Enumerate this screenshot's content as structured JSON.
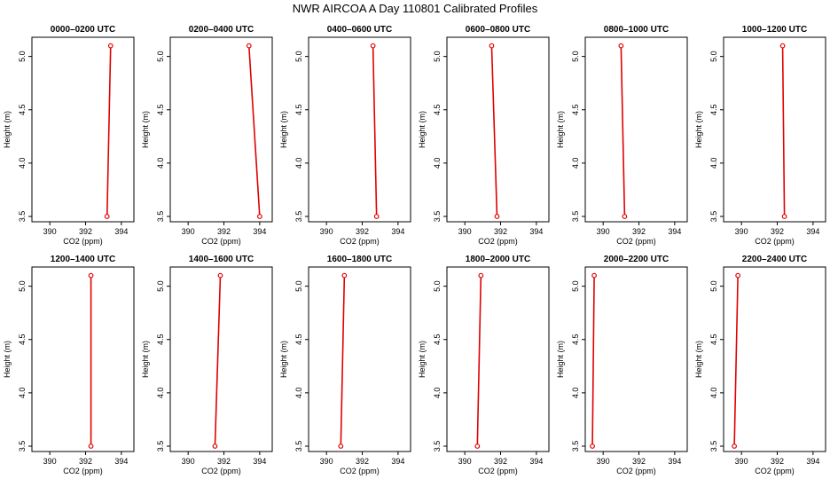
{
  "figure_title": "NWR AIRCOA A  Day 110801  Calibrated Profiles",
  "colors": {
    "profile": "#e00000",
    "frame": "#000000"
  },
  "chart_data": [
    {
      "type": "line",
      "title": "0000–0200 UTC",
      "xlabel": "CO2 (ppm)",
      "ylabel": "Height (m)",
      "xlim": [
        389,
        394.7
      ],
      "ylim": [
        3.45,
        5.18
      ],
      "xticks": [
        390,
        392,
        394
      ],
      "yticks": [
        3.5,
        4.0,
        4.5,
        5.0
      ],
      "series": [
        {
          "values": [
            {
              "x": 393.2,
              "y": 3.5
            },
            {
              "x": 393.4,
              "y": 5.1
            }
          ]
        }
      ]
    },
    {
      "type": "line",
      "title": "0200–0400 UTC",
      "xlabel": "CO2 (ppm)",
      "ylabel": "Height (m)",
      "xlim": [
        389,
        394.7
      ],
      "ylim": [
        3.45,
        5.18
      ],
      "xticks": [
        390,
        392,
        394
      ],
      "yticks": [
        3.5,
        4.0,
        4.5,
        5.0
      ],
      "series": [
        {
          "values": [
            {
              "x": 394.0,
              "y": 3.5
            },
            {
              "x": 393.4,
              "y": 5.1
            }
          ]
        }
      ]
    },
    {
      "type": "line",
      "title": "0400–0600 UTC",
      "xlabel": "CO2 (ppm)",
      "ylabel": "Height (m)",
      "xlim": [
        389,
        394.7
      ],
      "ylim": [
        3.45,
        5.18
      ],
      "xticks": [
        390,
        392,
        394
      ],
      "yticks": [
        3.5,
        4.0,
        4.5,
        5.0
      ],
      "series": [
        {
          "values": [
            {
              "x": 392.8,
              "y": 3.5
            },
            {
              "x": 392.6,
              "y": 5.1
            }
          ]
        }
      ]
    },
    {
      "type": "line",
      "title": "0600–0800 UTC",
      "xlabel": "CO2 (ppm)",
      "ylabel": "Height (m)",
      "xlim": [
        389,
        394.7
      ],
      "ylim": [
        3.45,
        5.18
      ],
      "xticks": [
        390,
        392,
        394
      ],
      "yticks": [
        3.5,
        4.0,
        4.5,
        5.0
      ],
      "series": [
        {
          "values": [
            {
              "x": 391.8,
              "y": 3.5
            },
            {
              "x": 391.5,
              "y": 5.1
            }
          ]
        }
      ]
    },
    {
      "type": "line",
      "title": "0800–1000 UTC",
      "xlabel": "CO2 (ppm)",
      "ylabel": "Height (m)",
      "xlim": [
        389,
        394.7
      ],
      "ylim": [
        3.45,
        5.18
      ],
      "xticks": [
        390,
        392,
        394
      ],
      "yticks": [
        3.5,
        4.0,
        4.5,
        5.0
      ],
      "series": [
        {
          "values": [
            {
              "x": 391.2,
              "y": 3.5
            },
            {
              "x": 391.0,
              "y": 5.1
            }
          ]
        }
      ]
    },
    {
      "type": "line",
      "title": "1000–1200 UTC",
      "xlabel": "CO2 (ppm)",
      "ylabel": "Height (m)",
      "xlim": [
        389,
        394.7
      ],
      "ylim": [
        3.45,
        5.18
      ],
      "xticks": [
        390,
        392,
        394
      ],
      "yticks": [
        3.5,
        4.0,
        4.5,
        5.0
      ],
      "series": [
        {
          "values": [
            {
              "x": 392.4,
              "y": 3.5
            },
            {
              "x": 392.3,
              "y": 5.1
            }
          ]
        }
      ]
    },
    {
      "type": "line",
      "title": "1200–1400 UTC",
      "xlabel": "CO2 (ppm)",
      "ylabel": "Height (m)",
      "xlim": [
        389,
        394.7
      ],
      "ylim": [
        3.45,
        5.18
      ],
      "xticks": [
        390,
        392,
        394
      ],
      "yticks": [
        3.5,
        4.0,
        4.5,
        5.0
      ],
      "series": [
        {
          "values": [
            {
              "x": 392.3,
              "y": 3.5
            },
            {
              "x": 392.3,
              "y": 5.1
            }
          ]
        }
      ]
    },
    {
      "type": "line",
      "title": "1400–1600 UTC",
      "xlabel": "CO2 (ppm)",
      "ylabel": "Height (m)",
      "xlim": [
        389,
        394.7
      ],
      "ylim": [
        3.45,
        5.18
      ],
      "xticks": [
        390,
        392,
        394
      ],
      "yticks": [
        3.5,
        4.0,
        4.5,
        5.0
      ],
      "series": [
        {
          "values": [
            {
              "x": 391.5,
              "y": 3.5
            },
            {
              "x": 391.8,
              "y": 5.1
            }
          ]
        }
      ]
    },
    {
      "type": "line",
      "title": "1600–1800 UTC",
      "xlabel": "CO2 (ppm)",
      "ylabel": "Height (m)",
      "xlim": [
        389,
        394.7
      ],
      "ylim": [
        3.45,
        5.18
      ],
      "xticks": [
        390,
        392,
        394
      ],
      "yticks": [
        3.5,
        4.0,
        4.5,
        5.0
      ],
      "series": [
        {
          "values": [
            {
              "x": 390.8,
              "y": 3.5
            },
            {
              "x": 391.0,
              "y": 5.1
            }
          ]
        }
      ]
    },
    {
      "type": "line",
      "title": "1800–2000 UTC",
      "xlabel": "CO2 (ppm)",
      "ylabel": "Height (m)",
      "xlim": [
        389,
        394.7
      ],
      "ylim": [
        3.45,
        5.18
      ],
      "xticks": [
        390,
        392,
        394
      ],
      "yticks": [
        3.5,
        4.0,
        4.5,
        5.0
      ],
      "series": [
        {
          "values": [
            {
              "x": 390.7,
              "y": 3.5
            },
            {
              "x": 390.9,
              "y": 5.1
            }
          ]
        }
      ]
    },
    {
      "type": "line",
      "title": "2000–2200 UTC",
      "xlabel": "CO2 (ppm)",
      "ylabel": "Height (m)",
      "xlim": [
        389,
        394.7
      ],
      "ylim": [
        3.45,
        5.18
      ],
      "xticks": [
        390,
        392,
        394
      ],
      "yticks": [
        3.5,
        4.0,
        4.5,
        5.0
      ],
      "series": [
        {
          "values": [
            {
              "x": 389.4,
              "y": 3.5
            },
            {
              "x": 389.5,
              "y": 5.1
            }
          ]
        }
      ]
    },
    {
      "type": "line",
      "title": "2200–2400 UTC",
      "xlabel": "CO2 (ppm)",
      "ylabel": "Height (m)",
      "xlim": [
        389,
        394.7
      ],
      "ylim": [
        3.45,
        5.18
      ],
      "xticks": [
        390,
        392,
        394
      ],
      "yticks": [
        3.5,
        4.0,
        4.5,
        5.0
      ],
      "series": [
        {
          "values": [
            {
              "x": 389.6,
              "y": 3.5
            },
            {
              "x": 389.8,
              "y": 5.1
            }
          ]
        }
      ]
    }
  ]
}
